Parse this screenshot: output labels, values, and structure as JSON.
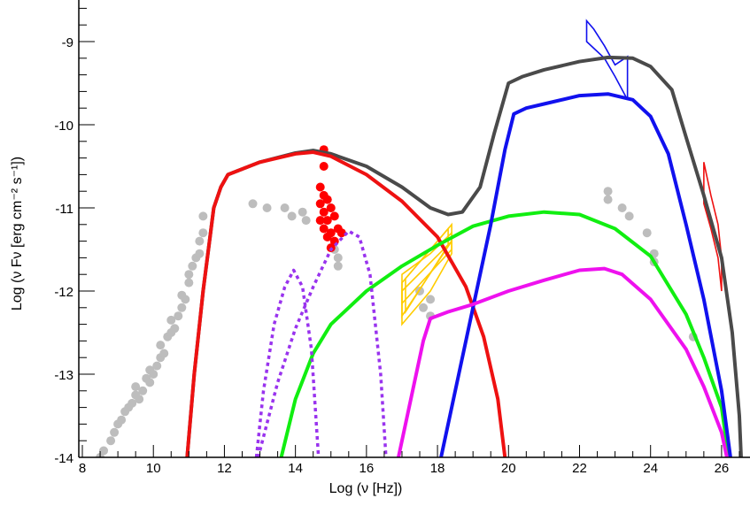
{
  "chart_data": {
    "type": "scatter",
    "xlabel": "Log (ν [Hz])",
    "ylabel": "Log (ν Fν [erg cm⁻² s⁻¹])",
    "xlim": [
      7.9,
      26.8
    ],
    "ylim": [
      -14,
      -8.5
    ],
    "x_ticks": [
      8,
      10,
      12,
      14,
      16,
      18,
      20,
      22,
      24,
      26
    ],
    "y_ticks": [
      -14,
      -13,
      -12,
      -11,
      -10,
      -9
    ],
    "grid": false,
    "colors": {
      "archival_points": "#bdbdbd",
      "observed_points": "#ff0000",
      "total_model": "#4a4a4a",
      "synchrotron": "#ee1111",
      "ssc": "#11ee11",
      "ec": "#1111ee",
      "ssc2": "#ee11ee",
      "thermal": "#9933ee",
      "xray_bowtie": "#ffcc00",
      "gamma_bowtie": "#1111ee",
      "vhe_bowtie": "#ee1111"
    },
    "series": [
      {
        "kind": "curve",
        "style": "solid",
        "color": "#4a4a4a",
        "values": [
          [
            10.95,
            -14
          ],
          [
            11.15,
            -13
          ],
          [
            11.4,
            -12
          ],
          [
            11.7,
            -11
          ],
          [
            11.9,
            -10.75
          ],
          [
            12.1,
            -10.6
          ],
          [
            13,
            -10.45
          ],
          [
            14,
            -10.34
          ],
          [
            14.5,
            -10.31
          ],
          [
            15,
            -10.35
          ],
          [
            16,
            -10.5
          ],
          [
            17,
            -10.75
          ],
          [
            17.8,
            -11.0
          ],
          [
            18.3,
            -11.08
          ],
          [
            18.7,
            -11.05
          ],
          [
            19.2,
            -10.75
          ],
          [
            19.6,
            -10.1
          ],
          [
            20,
            -9.5
          ],
          [
            20.4,
            -9.42
          ],
          [
            21,
            -9.34
          ],
          [
            22,
            -9.24
          ],
          [
            22.8,
            -9.19
          ],
          [
            23.5,
            -9.2
          ],
          [
            24,
            -9.3
          ],
          [
            24.6,
            -9.58
          ],
          [
            25,
            -10.15
          ],
          [
            25.5,
            -10.85
          ],
          [
            26,
            -11.6
          ],
          [
            26.3,
            -12.5
          ],
          [
            26.5,
            -13.5
          ],
          [
            26.55,
            -14
          ]
        ]
      },
      {
        "kind": "curve",
        "style": "solid",
        "color": "#ee1111",
        "values": [
          [
            10.95,
            -14
          ],
          [
            11.15,
            -13
          ],
          [
            11.4,
            -12
          ],
          [
            11.7,
            -11
          ],
          [
            11.9,
            -10.75
          ],
          [
            12.1,
            -10.6
          ],
          [
            13,
            -10.45
          ],
          [
            14,
            -10.35
          ],
          [
            14.5,
            -10.33
          ],
          [
            15,
            -10.38
          ],
          [
            16,
            -10.6
          ],
          [
            17,
            -10.92
          ],
          [
            18,
            -11.35
          ],
          [
            18.8,
            -11.95
          ],
          [
            19.3,
            -12.55
          ],
          [
            19.7,
            -13.3
          ],
          [
            19.9,
            -14
          ]
        ]
      },
      {
        "kind": "curve",
        "style": "solid",
        "color": "#11ee11",
        "values": [
          [
            13.6,
            -14
          ],
          [
            14,
            -13.3
          ],
          [
            14.5,
            -12.75
          ],
          [
            15,
            -12.4
          ],
          [
            16,
            -12.0
          ],
          [
            17,
            -11.7
          ],
          [
            18,
            -11.45
          ],
          [
            19,
            -11.22
          ],
          [
            20,
            -11.1
          ],
          [
            21,
            -11.05
          ],
          [
            22,
            -11.08
          ],
          [
            23,
            -11.25
          ],
          [
            24,
            -11.58
          ],
          [
            25,
            -12.28
          ],
          [
            25.5,
            -12.8
          ],
          [
            26,
            -13.4
          ],
          [
            26.2,
            -14
          ]
        ]
      },
      {
        "kind": "curve",
        "style": "solid",
        "color": "#1111ee",
        "values": [
          [
            18.1,
            -14
          ],
          [
            18.6,
            -13.0
          ],
          [
            19.0,
            -12.2
          ],
          [
            19.5,
            -11.2
          ],
          [
            19.9,
            -10.3
          ],
          [
            20.15,
            -9.87
          ],
          [
            20.5,
            -9.8
          ],
          [
            21,
            -9.75
          ],
          [
            22,
            -9.65
          ],
          [
            22.8,
            -9.63
          ],
          [
            23.5,
            -9.7
          ],
          [
            24,
            -9.9
          ],
          [
            24.5,
            -10.35
          ],
          [
            25,
            -11.2
          ],
          [
            25.5,
            -12.1
          ],
          [
            26,
            -13.2
          ],
          [
            26.25,
            -14
          ]
        ]
      },
      {
        "kind": "curve",
        "style": "solid",
        "color": "#ee11ee",
        "values": [
          [
            16.9,
            -14
          ],
          [
            17.3,
            -13.2
          ],
          [
            17.6,
            -12.6
          ],
          [
            17.8,
            -12.33
          ],
          [
            18.3,
            -12.25
          ],
          [
            19,
            -12.16
          ],
          [
            20,
            -12.0
          ],
          [
            21,
            -11.87
          ],
          [
            22,
            -11.75
          ],
          [
            22.7,
            -11.73
          ],
          [
            23.2,
            -11.8
          ],
          [
            24,
            -12.1
          ],
          [
            25,
            -12.7
          ],
          [
            25.5,
            -13.15
          ],
          [
            26,
            -13.7
          ],
          [
            26.15,
            -14
          ]
        ]
      },
      {
        "kind": "curve",
        "style": "dashed",
        "color": "#9933ee",
        "values": [
          [
            12.9,
            -14
          ],
          [
            13.1,
            -13.2
          ],
          [
            13.4,
            -12.4
          ],
          [
            13.7,
            -11.95
          ],
          [
            13.95,
            -11.75
          ],
          [
            14.2,
            -11.95
          ],
          [
            14.45,
            -12.7
          ],
          [
            14.65,
            -14
          ]
        ]
      },
      {
        "kind": "curve",
        "style": "dashed",
        "color": "#9933ee",
        "values": [
          [
            12.95,
            -14
          ],
          [
            13.5,
            -13.1
          ],
          [
            14,
            -12.45
          ],
          [
            14.5,
            -11.95
          ],
          [
            15,
            -11.5
          ],
          [
            15.5,
            -11.28
          ],
          [
            15.8,
            -11.35
          ],
          [
            16.1,
            -11.8
          ],
          [
            16.4,
            -13.0
          ],
          [
            16.55,
            -14
          ]
        ]
      },
      {
        "kind": "scatter",
        "color": "#bdbdbd",
        "values": [
          [
            8.5,
            -14.0
          ],
          [
            8.6,
            -13.92
          ],
          [
            8.8,
            -13.8
          ],
          [
            8.9,
            -13.7
          ],
          [
            9.0,
            -13.6
          ],
          [
            9.1,
            -13.55
          ],
          [
            9.2,
            -13.45
          ],
          [
            9.3,
            -13.4
          ],
          [
            9.4,
            -13.35
          ],
          [
            9.5,
            -13.25
          ],
          [
            9.5,
            -13.15
          ],
          [
            9.6,
            -13.3
          ],
          [
            9.7,
            -13.2
          ],
          [
            9.8,
            -13.05
          ],
          [
            9.9,
            -13.1
          ],
          [
            9.9,
            -12.95
          ],
          [
            10.0,
            -13.0
          ],
          [
            10.1,
            -12.9
          ],
          [
            10.2,
            -12.8
          ],
          [
            10.2,
            -12.65
          ],
          [
            10.3,
            -12.75
          ],
          [
            10.4,
            -12.55
          ],
          [
            10.5,
            -12.5
          ],
          [
            10.5,
            -12.35
          ],
          [
            10.6,
            -12.45
          ],
          [
            10.7,
            -12.3
          ],
          [
            10.8,
            -12.2
          ],
          [
            10.8,
            -12.05
          ],
          [
            10.9,
            -12.1
          ],
          [
            11.0,
            -11.9
          ],
          [
            11.0,
            -11.8
          ],
          [
            11.1,
            -11.7
          ],
          [
            11.2,
            -11.6
          ],
          [
            11.3,
            -11.55
          ],
          [
            11.3,
            -11.4
          ],
          [
            11.4,
            -11.3
          ],
          [
            11.4,
            -11.1
          ],
          [
            12.8,
            -10.95
          ],
          [
            13.2,
            -11.0
          ],
          [
            13.7,
            -11.0
          ],
          [
            13.9,
            -11.1
          ],
          [
            14.2,
            -11.05
          ],
          [
            14.3,
            -11.15
          ],
          [
            15.0,
            -11.0
          ],
          [
            15.1,
            -11.5
          ],
          [
            15.2,
            -11.6
          ],
          [
            15.2,
            -11.7
          ],
          [
            17.5,
            -12.0
          ],
          [
            17.6,
            -12.2
          ],
          [
            17.8,
            -12.1
          ],
          [
            17.8,
            -12.3
          ],
          [
            22.8,
            -10.8
          ],
          [
            22.8,
            -10.9
          ],
          [
            23.2,
            -11.0
          ],
          [
            23.4,
            -11.1
          ],
          [
            23.9,
            -11.3
          ],
          [
            24.1,
            -11.55
          ],
          [
            24.1,
            -11.65
          ],
          [
            25.2,
            -12.55
          ]
        ]
      },
      {
        "kind": "scatter",
        "color": "#ff0000",
        "values": [
          [
            14.8,
            -10.3
          ],
          [
            14.8,
            -10.5
          ],
          [
            14.7,
            -10.75
          ],
          [
            14.8,
            -10.85
          ],
          [
            14.7,
            -10.95
          ],
          [
            14.9,
            -10.9
          ],
          [
            14.8,
            -11.05
          ],
          [
            15.0,
            -11.0
          ],
          [
            14.7,
            -11.15
          ],
          [
            14.9,
            -11.15
          ],
          [
            15.1,
            -11.1
          ],
          [
            14.8,
            -11.25
          ],
          [
            15.0,
            -11.3
          ],
          [
            15.2,
            -11.25
          ],
          [
            14.9,
            -11.35
          ],
          [
            15.1,
            -11.4
          ],
          [
            15.3,
            -11.3
          ],
          [
            15.0,
            -11.48
          ]
        ]
      }
    ],
    "bowties": [
      {
        "color": "#ffcc00",
        "polys": [
          [
            [
              17.0,
              -11.8
            ],
            [
              17.8,
              -11.55
            ],
            [
              18.4,
              -11.3
            ],
            [
              18.4,
              -11.55
            ],
            [
              17.8,
              -12.0
            ],
            [
              17.0,
              -12.4
            ]
          ],
          [
            [
              17.0,
              -11.9
            ],
            [
              18.4,
              -11.2
            ],
            [
              18.4,
              -11.4
            ],
            [
              17.0,
              -12.3
            ]
          ],
          [
            [
              17.0,
              -12.0
            ],
            [
              18.4,
              -11.4
            ],
            [
              18.4,
              -11.5
            ],
            [
              17.0,
              -12.15
            ]
          ],
          [
            [
              17.1,
              -11.85
            ],
            [
              18.3,
              -11.25
            ],
            [
              18.3,
              -11.45
            ],
            [
              17.1,
              -12.25
            ]
          ]
        ]
      },
      {
        "color": "#1111ee",
        "polys": [
          [
            [
              22.2,
              -8.75
            ],
            [
              22.4,
              -8.85
            ],
            [
              22.7,
              -9.05
            ],
            [
              23.0,
              -9.28
            ],
            [
              23.35,
              -9.18
            ],
            [
              23.35,
              -9.7
            ],
            [
              23.0,
              -9.42
            ],
            [
              22.7,
              -9.2
            ],
            [
              22.4,
              -9.08
            ],
            [
              22.2,
              -9.0
            ]
          ]
        ]
      },
      {
        "color": "#ee1111",
        "polys": [
          [
            [
              25.5,
              -10.45
            ],
            [
              25.7,
              -10.85
            ],
            [
              25.9,
              -11.2
            ],
            [
              26.0,
              -11.6
            ],
            [
              26.0,
              -12.0
            ],
            [
              25.9,
              -11.6
            ],
            [
              25.7,
              -11.25
            ],
            [
              25.5,
              -10.95
            ]
          ]
        ]
      }
    ]
  }
}
